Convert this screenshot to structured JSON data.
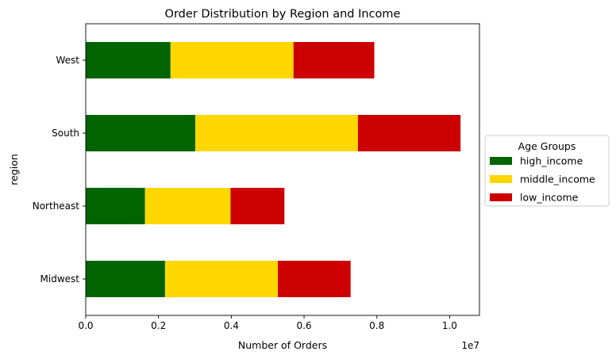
{
  "chart_data": {
    "type": "bar",
    "orientation": "horizontal",
    "stacked": true,
    "title": "Order Distribution by Region and Income",
    "xlabel": "Number of Orders",
    "ylabel": "region",
    "x_offset_text": "1e7",
    "xlim": [
      0,
      1.082
    ],
    "x_ticks": [
      0.0,
      0.2,
      0.4,
      0.6,
      0.8,
      1.0
    ],
    "x_tick_labels": [
      "0.0",
      "0.2",
      "0.4",
      "0.6",
      "0.8",
      "1.0"
    ],
    "categories": [
      "Midwest",
      "Northeast",
      "South",
      "West"
    ],
    "series": [
      {
        "name": "high_income",
        "color": "#006400",
        "values": [
          0.218,
          0.163,
          0.301,
          0.233
        ]
      },
      {
        "name": "middle_income",
        "color": "#FFD700",
        "values": [
          0.31,
          0.235,
          0.447,
          0.338
        ]
      },
      {
        "name": "low_income",
        "color": "#CC0000",
        "values": [
          0.2,
          0.148,
          0.282,
          0.222
        ]
      }
    ],
    "legend": {
      "title": "Age Groups",
      "placement": "center-right-outside"
    },
    "grid": false
  }
}
